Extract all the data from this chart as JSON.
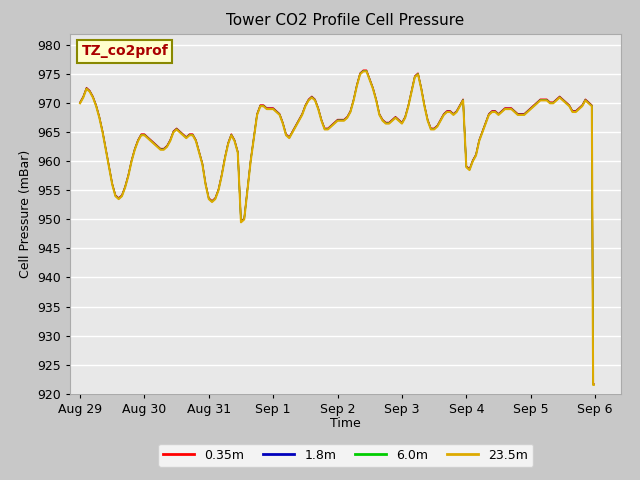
{
  "title": "Tower CO2 Profile Cell Pressure",
  "ylabel": "Cell Pressure (mBar)",
  "xlabel": "Time",
  "ylim": [
    920,
    982
  ],
  "yticks": [
    920,
    925,
    930,
    935,
    940,
    945,
    950,
    955,
    960,
    965,
    970,
    975,
    980
  ],
  "fig_bg_color": "#c8c8c8",
  "plot_bg_color": "#e8e8e8",
  "grid_color": "#ffffff",
  "legend_label": "TZ_co2prof",
  "legend_text_color": "#aa0000",
  "legend_box_facecolor": "#ffffcc",
  "legend_box_edgecolor": "#888800",
  "series_colors": [
    "#ff0000",
    "#0000bb",
    "#00cc00",
    "#ddaa00"
  ],
  "series_labels": [
    "0.35m",
    "1.8m",
    "6.0m",
    "23.5m"
  ],
  "x_tick_labels": [
    "Aug 29",
    "Aug 30",
    "Aug 31",
    "Sep 1",
    "Sep 2",
    "Sep 3",
    "Sep 4",
    "Sep 5",
    "Sep 6"
  ],
  "x_tick_positions": [
    0,
    1,
    2,
    3,
    4,
    5,
    6,
    7,
    8
  ],
  "xlim": [
    -0.15,
    8.4
  ],
  "data_x": [
    0.0,
    0.05,
    0.1,
    0.15,
    0.2,
    0.25,
    0.3,
    0.35,
    0.4,
    0.45,
    0.5,
    0.55,
    0.6,
    0.65,
    0.7,
    0.75,
    0.8,
    0.85,
    0.9,
    0.95,
    1.0,
    1.05,
    1.1,
    1.15,
    1.2,
    1.25,
    1.3,
    1.35,
    1.4,
    1.45,
    1.5,
    1.55,
    1.6,
    1.65,
    1.7,
    1.75,
    1.8,
    1.85,
    1.9,
    1.95,
    2.0,
    2.05,
    2.1,
    2.15,
    2.2,
    2.25,
    2.3,
    2.35,
    2.4,
    2.45,
    2.5,
    2.55,
    2.6,
    2.65,
    2.7,
    2.75,
    2.8,
    2.85,
    2.9,
    2.95,
    3.0,
    3.05,
    3.1,
    3.15,
    3.2,
    3.25,
    3.3,
    3.35,
    3.4,
    3.45,
    3.5,
    3.55,
    3.6,
    3.65,
    3.7,
    3.75,
    3.8,
    3.85,
    3.9,
    3.95,
    4.0,
    4.05,
    4.1,
    4.15,
    4.2,
    4.25,
    4.3,
    4.35,
    4.4,
    4.45,
    4.5,
    4.55,
    4.6,
    4.65,
    4.7,
    4.75,
    4.8,
    4.85,
    4.9,
    4.95,
    5.0,
    5.05,
    5.1,
    5.15,
    5.2,
    5.25,
    5.3,
    5.35,
    5.4,
    5.45,
    5.5,
    5.55,
    5.6,
    5.65,
    5.7,
    5.75,
    5.8,
    5.85,
    5.9,
    5.95,
    6.0,
    6.05,
    6.1,
    6.15,
    6.2,
    6.25,
    6.3,
    6.35,
    6.4,
    6.45,
    6.5,
    6.55,
    6.6,
    6.65,
    6.7,
    6.75,
    6.8,
    6.85,
    6.9,
    6.95,
    7.0,
    7.05,
    7.1,
    7.15,
    7.2,
    7.25,
    7.3,
    7.35,
    7.4,
    7.45,
    7.5,
    7.55,
    7.6,
    7.65,
    7.7,
    7.75,
    7.8,
    7.85,
    7.9,
    7.95,
    7.97,
    7.98
  ],
  "data_y": [
    970.0,
    971.0,
    972.5,
    972.0,
    971.0,
    969.5,
    967.5,
    965.0,
    962.0,
    959.0,
    956.0,
    954.0,
    953.5,
    954.0,
    955.5,
    957.5,
    960.0,
    962.0,
    963.5,
    964.5,
    964.5,
    964.0,
    963.5,
    963.0,
    962.5,
    962.0,
    962.0,
    962.5,
    963.5,
    965.0,
    965.5,
    965.0,
    964.5,
    964.0,
    964.5,
    964.5,
    963.5,
    961.5,
    959.5,
    956.0,
    953.5,
    953.0,
    953.5,
    955.0,
    957.5,
    960.5,
    963.0,
    964.5,
    963.5,
    961.5,
    949.5,
    950.0,
    955.0,
    960.0,
    964.0,
    968.0,
    969.5,
    969.5,
    969.0,
    969.0,
    969.0,
    968.5,
    968.0,
    966.5,
    964.5,
    964.0,
    965.0,
    966.0,
    967.0,
    968.0,
    969.5,
    970.5,
    971.0,
    970.5,
    969.0,
    967.0,
    965.5,
    965.5,
    966.0,
    966.5,
    967.0,
    967.0,
    967.0,
    967.5,
    968.5,
    970.5,
    973.0,
    975.0,
    975.5,
    975.5,
    974.0,
    972.5,
    970.5,
    968.0,
    967.0,
    966.5,
    966.5,
    967.0,
    967.5,
    967.0,
    966.5,
    967.5,
    969.5,
    972.0,
    974.5,
    975.0,
    972.5,
    969.5,
    967.0,
    965.5,
    965.5,
    966.0,
    967.0,
    968.0,
    968.5,
    968.5,
    968.0,
    968.5,
    969.5,
    970.5,
    959.0,
    958.5,
    960.0,
    961.0,
    963.5,
    965.0,
    966.5,
    968.0,
    968.5,
    968.5,
    968.0,
    968.5,
    969.0,
    969.0,
    969.0,
    968.5,
    968.0,
    968.0,
    968.0,
    968.5,
    969.0,
    969.5,
    970.0,
    970.5,
    970.5,
    970.5,
    970.0,
    970.0,
    970.5,
    971.0,
    970.5,
    970.0,
    969.5,
    968.5,
    968.5,
    969.0,
    969.5,
    970.5,
    970.0,
    969.5,
    921.5,
    921.5
  ]
}
